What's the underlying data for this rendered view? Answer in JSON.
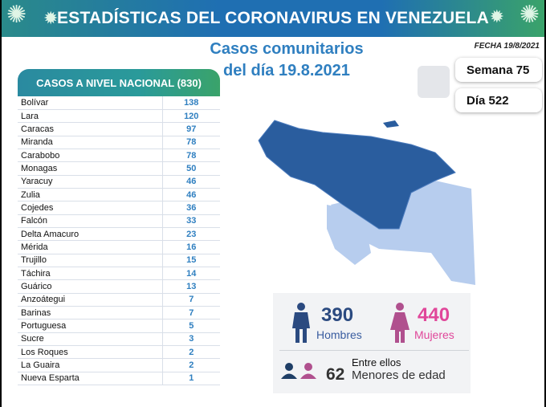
{
  "banner": {
    "title": "ESTADÍSTICAS DEL CORONAVIRUS EN VENEZUELA"
  },
  "subtitle": {
    "line1": "Casos comunitarios",
    "line2": "del día 19.8.2021"
  },
  "fecha": "FECHA 19/8/2021",
  "semana": "Semana 75",
  "dia": "Día 522",
  "table": {
    "header": "CASOS A NIVEL NACIONAL (830)",
    "rows": [
      {
        "state": "Bolívar",
        "cases": "138"
      },
      {
        "state": "Lara",
        "cases": "120"
      },
      {
        "state": "Caracas",
        "cases": "97"
      },
      {
        "state": "Miranda",
        "cases": "78"
      },
      {
        "state": "Carabobo",
        "cases": "78"
      },
      {
        "state": "Monagas",
        "cases": "50"
      },
      {
        "state": "Yaracuy",
        "cases": "46"
      },
      {
        "state": "Zulia",
        "cases": "46"
      },
      {
        "state": "Cojedes",
        "cases": "36"
      },
      {
        "state": "Falcón",
        "cases": "33"
      },
      {
        "state": "Delta Amacuro",
        "cases": "23"
      },
      {
        "state": "Mérida",
        "cases": "16"
      },
      {
        "state": "Trujillo",
        "cases": "15"
      },
      {
        "state": "Táchira",
        "cases": "14"
      },
      {
        "state": "Guárico",
        "cases": "13"
      },
      {
        "state": "Anzoátegui",
        "cases": "7"
      },
      {
        "state": "Barinas",
        "cases": "7"
      },
      {
        "state": "Portuguesa",
        "cases": "5"
      },
      {
        "state": "Sucre",
        "cases": "3"
      },
      {
        "state": "Los Roques",
        "cases": "2"
      },
      {
        "state": "La Guaira",
        "cases": "2"
      },
      {
        "state": "Nueva Esparta",
        "cases": "1"
      }
    ]
  },
  "stats": {
    "men": "390",
    "men_label": "Hombres",
    "women": "440",
    "women_label": "Mujeres",
    "minors_intro": "Entre ellos",
    "minors": "62",
    "minors_label": "Menores de edad"
  },
  "colors": {
    "men": "#2b4a80",
    "women": "#e0479a",
    "map_dark": "#2a5d9e",
    "map_light": "#b7cdee"
  }
}
